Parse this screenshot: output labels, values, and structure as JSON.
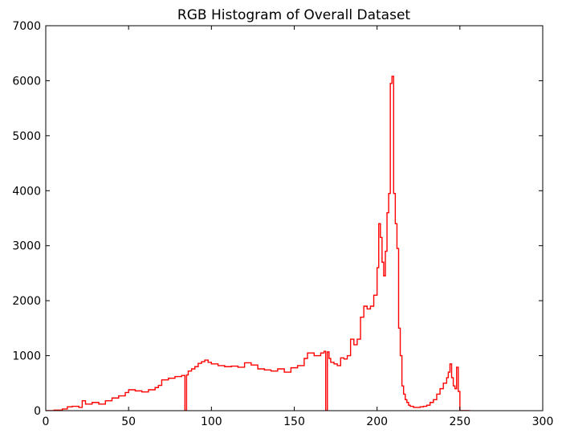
{
  "chart_data": {
    "type": "line",
    "title": "RGB Histogram of Overall Dataset",
    "xlabel": "",
    "ylabel": "",
    "xlim": [
      0,
      300
    ],
    "ylim": [
      0,
      7000
    ],
    "xticks": [
      0,
      50,
      100,
      150,
      200,
      250,
      300
    ],
    "yticks": [
      0,
      1000,
      2000,
      3000,
      4000,
      5000,
      6000,
      7000
    ],
    "grid": false,
    "legend": "none",
    "series": [
      {
        "color": "#ff0000",
        "style": "step",
        "x": [
          0,
          5,
          10,
          13,
          16,
          20,
          22,
          24,
          28,
          32,
          36,
          40,
          44,
          48,
          50,
          54,
          58,
          62,
          66,
          68,
          70,
          74,
          78,
          82,
          84,
          85,
          86,
          88,
          90,
          92,
          94,
          96,
          98,
          100,
          104,
          108,
          112,
          116,
          120,
          124,
          128,
          132,
          136,
          140,
          144,
          148,
          152,
          156,
          158,
          162,
          166,
          168,
          169,
          170,
          171,
          172,
          174,
          176,
          178,
          180,
          182,
          184,
          186,
          188,
          190,
          192,
          194,
          196,
          198,
          200,
          201,
          202,
          203,
          204,
          205,
          206,
          207,
          208,
          209,
          210,
          211,
          212,
          213,
          214,
          215,
          216,
          217,
          218,
          219,
          220,
          222,
          224,
          226,
          228,
          230,
          232,
          234,
          236,
          238,
          240,
          242,
          243,
          244,
          245,
          246,
          247,
          248,
          249,
          250,
          251,
          252,
          253,
          254,
          255
        ],
        "y": [
          0,
          10,
          30,
          70,
          80,
          60,
          180,
          120,
          150,
          120,
          180,
          230,
          270,
          330,
          380,
          360,
          340,
          380,
          420,
          460,
          560,
          590,
          620,
          640,
          0,
          650,
          720,
          760,
          800,
          860,
          890,
          920,
          880,
          850,
          820,
          800,
          810,
          790,
          870,
          830,
          760,
          740,
          720,
          760,
          700,
          780,
          820,
          950,
          1050,
          1000,
          1050,
          1080,
          0,
          1070,
          950,
          880,
          850,
          820,
          960,
          940,
          1000,
          1300,
          1200,
          1300,
          1700,
          1900,
          1850,
          1900,
          2100,
          2600,
          3400,
          3150,
          2700,
          2450,
          2900,
          3600,
          3950,
          5950,
          6080,
          3950,
          3400,
          2950,
          1500,
          1000,
          450,
          300,
          200,
          150,
          100,
          80,
          60,
          60,
          70,
          80,
          100,
          150,
          200,
          300,
          400,
          500,
          600,
          700,
          850,
          600,
          450,
          400,
          790,
          350,
          0,
          0,
          0,
          0,
          0,
          0
        ]
      }
    ]
  }
}
